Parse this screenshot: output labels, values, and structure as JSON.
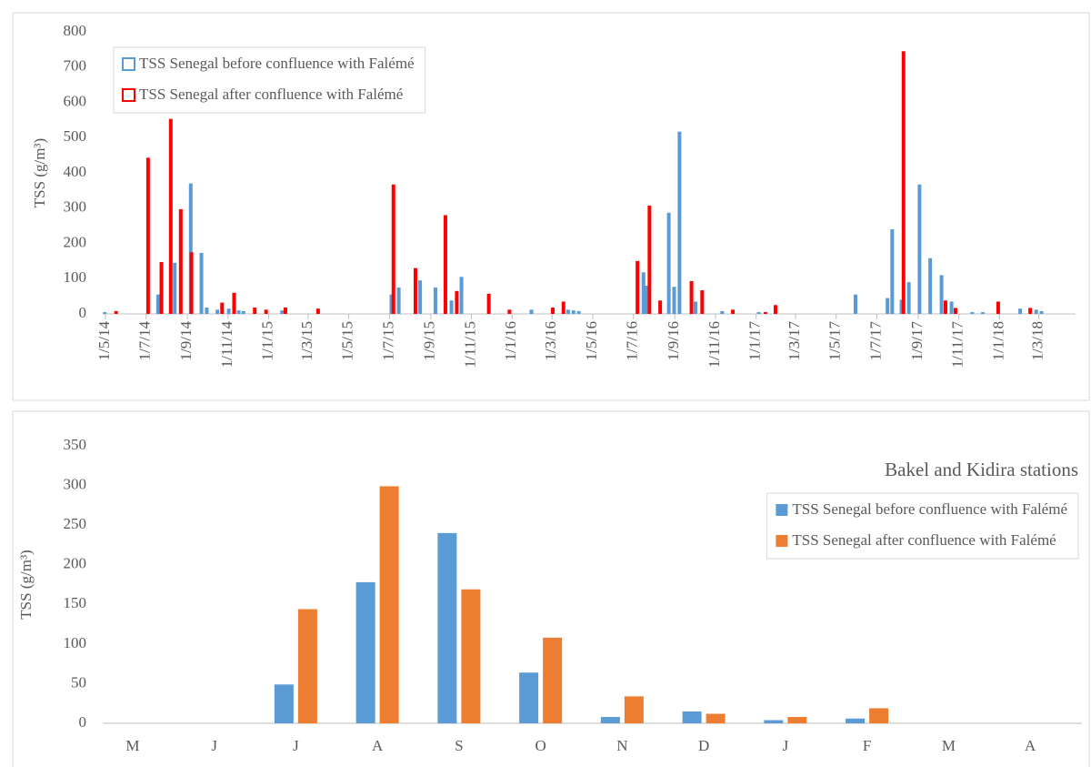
{
  "chart_data": [
    {
      "type": "bar",
      "y_label": "TSS (g/m³)",
      "legend": "upper left",
      "xlim": [
        "2014-04-27",
        "2018-04-25"
      ],
      "xticks": [
        {
          "value": "2014-05-01",
          "label": "1/5/14"
        },
        {
          "value": "2014-07-01",
          "label": "1/7/14"
        },
        {
          "value": "2014-09-01",
          "label": "1/9/14"
        },
        {
          "value": "2014-11-01",
          "label": "1/11/14"
        },
        {
          "value": "2015-01-01",
          "label": "1/1/15"
        },
        {
          "value": "2015-03-01",
          "label": "1/3/15"
        },
        {
          "value": "2015-05-01",
          "label": "1/5/15"
        },
        {
          "value": "2015-07-01",
          "label": "1/7/15"
        },
        {
          "value": "2015-09-01",
          "label": "1/9/15"
        },
        {
          "value": "2015-11-01",
          "label": "1/11/15"
        },
        {
          "value": "2016-01-01",
          "label": "1/1/16"
        },
        {
          "value": "2016-03-01",
          "label": "1/3/16"
        },
        {
          "value": "2016-05-01",
          "label": "1/5/16"
        },
        {
          "value": "2016-07-01",
          "label": "1/7/16"
        },
        {
          "value": "2016-09-01",
          "label": "1/9/16"
        },
        {
          "value": "2016-11-01",
          "label": "1/11/16"
        },
        {
          "value": "2017-01-01",
          "label": "1/1/17"
        },
        {
          "value": "2017-03-01",
          "label": "1/3/17"
        },
        {
          "value": "2017-05-01",
          "label": "1/5/17"
        },
        {
          "value": "2017-07-01",
          "label": "1/7/17"
        },
        {
          "value": "2017-09-01",
          "label": "1/9/17"
        },
        {
          "value": "2017-11-01",
          "label": "1/11/17"
        },
        {
          "value": "2018-01-01",
          "label": "1/1/18"
        },
        {
          "value": "2018-03-01",
          "label": "1/3/18"
        }
      ],
      "ylim": [
        0,
        800
      ],
      "yticks": [
        0,
        100,
        200,
        300,
        400,
        500,
        600,
        700,
        800
      ],
      "series": [
        {
          "name": "TSS Senegal before confluence with Falémé",
          "color": "#5b9bd5",
          "x": [
            "2014-04-30",
            "2014-07-19",
            "2014-08-13",
            "2014-09-06",
            "2014-09-22",
            "2014-09-30",
            "2014-10-16",
            "2014-11-02",
            "2014-11-17",
            "2014-11-24",
            "2015-01-21",
            "2015-07-04",
            "2015-07-15",
            "2015-08-16",
            "2015-09-08",
            "2015-10-02",
            "2015-10-17",
            "2016-01-30",
            "2016-03-25",
            "2016-04-02",
            "2016-04-10",
            "2016-07-16",
            "2016-07-21",
            "2016-08-23",
            "2016-08-31",
            "2016-09-08",
            "2016-10-02",
            "2016-11-11",
            "2017-01-05",
            "2017-05-30",
            "2017-07-17",
            "2017-07-24",
            "2017-08-07",
            "2017-08-18",
            "2017-09-03",
            "2017-09-19",
            "2017-10-06",
            "2017-10-21",
            "2017-11-21",
            "2017-12-07",
            "2018-02-01",
            "2018-02-25",
            "2018-03-05"
          ],
          "values": [
            5,
            55,
            145,
            370,
            173,
            18,
            12,
            15,
            10,
            8,
            10,
            55,
            75,
            95,
            75,
            38,
            105,
            12,
            12,
            10,
            8,
            118,
            80,
            287,
            77,
            517,
            35,
            8,
            5,
            55,
            45,
            240,
            40,
            90,
            367,
            158,
            110,
            35,
            5,
            5,
            15,
            12,
            8
          ]
        },
        {
          "name": "TSS Senegal after confluence with Falémé",
          "color": "#ff0000",
          "x": [
            "2014-05-17",
            "2014-07-04",
            "2014-07-24",
            "2014-08-07",
            "2014-08-22",
            "2014-09-07",
            "2014-10-23",
            "2014-11-10",
            "2014-12-11",
            "2014-12-28",
            "2015-01-26",
            "2015-03-16",
            "2015-07-07",
            "2015-08-09",
            "2015-09-23",
            "2015-10-10",
            "2015-11-27",
            "2015-12-28",
            "2016-03-02",
            "2016-03-18",
            "2016-07-07",
            "2016-07-25",
            "2016-08-10",
            "2016-09-26",
            "2016-10-12",
            "2016-11-27",
            "2017-01-15",
            "2017-01-30",
            "2017-08-10",
            "2017-10-12",
            "2017-10-27",
            "2017-12-30",
            "2018-02-16"
          ],
          "values": [
            8,
            443,
            147,
            553,
            297,
            175,
            32,
            60,
            18,
            12,
            18,
            15,
            367,
            130,
            280,
            65,
            57,
            12,
            18,
            35,
            150,
            307,
            38,
            93,
            67,
            12,
            5,
            25,
            745,
            38,
            17,
            35,
            17
          ]
        }
      ]
    },
    {
      "type": "bar",
      "y_label": "TSS (g/m³)",
      "legend": "upper right",
      "annotation": "Bakel and Kidira stations",
      "categories": [
        "M",
        "J",
        "J",
        "A",
        "S",
        "O",
        "N",
        "D",
        "J",
        "F",
        "M",
        "A"
      ],
      "ylim": [
        0,
        350
      ],
      "yticks": [
        0,
        50,
        100,
        150,
        200,
        250,
        300,
        350
      ],
      "series": [
        {
          "name": "TSS Senegal before confluence with Falémé",
          "color": "#5b9bd5",
          "values": [
            null,
            null,
            49,
            178,
            240,
            64,
            8,
            15,
            4,
            6,
            null,
            null
          ]
        },
        {
          "name": "TSS Senegal after confluence with Falémé",
          "color": "#ed7d31",
          "values": [
            null,
            null,
            144,
            299,
            169,
            108,
            34,
            12,
            8,
            19,
            null,
            null
          ]
        }
      ]
    }
  ]
}
